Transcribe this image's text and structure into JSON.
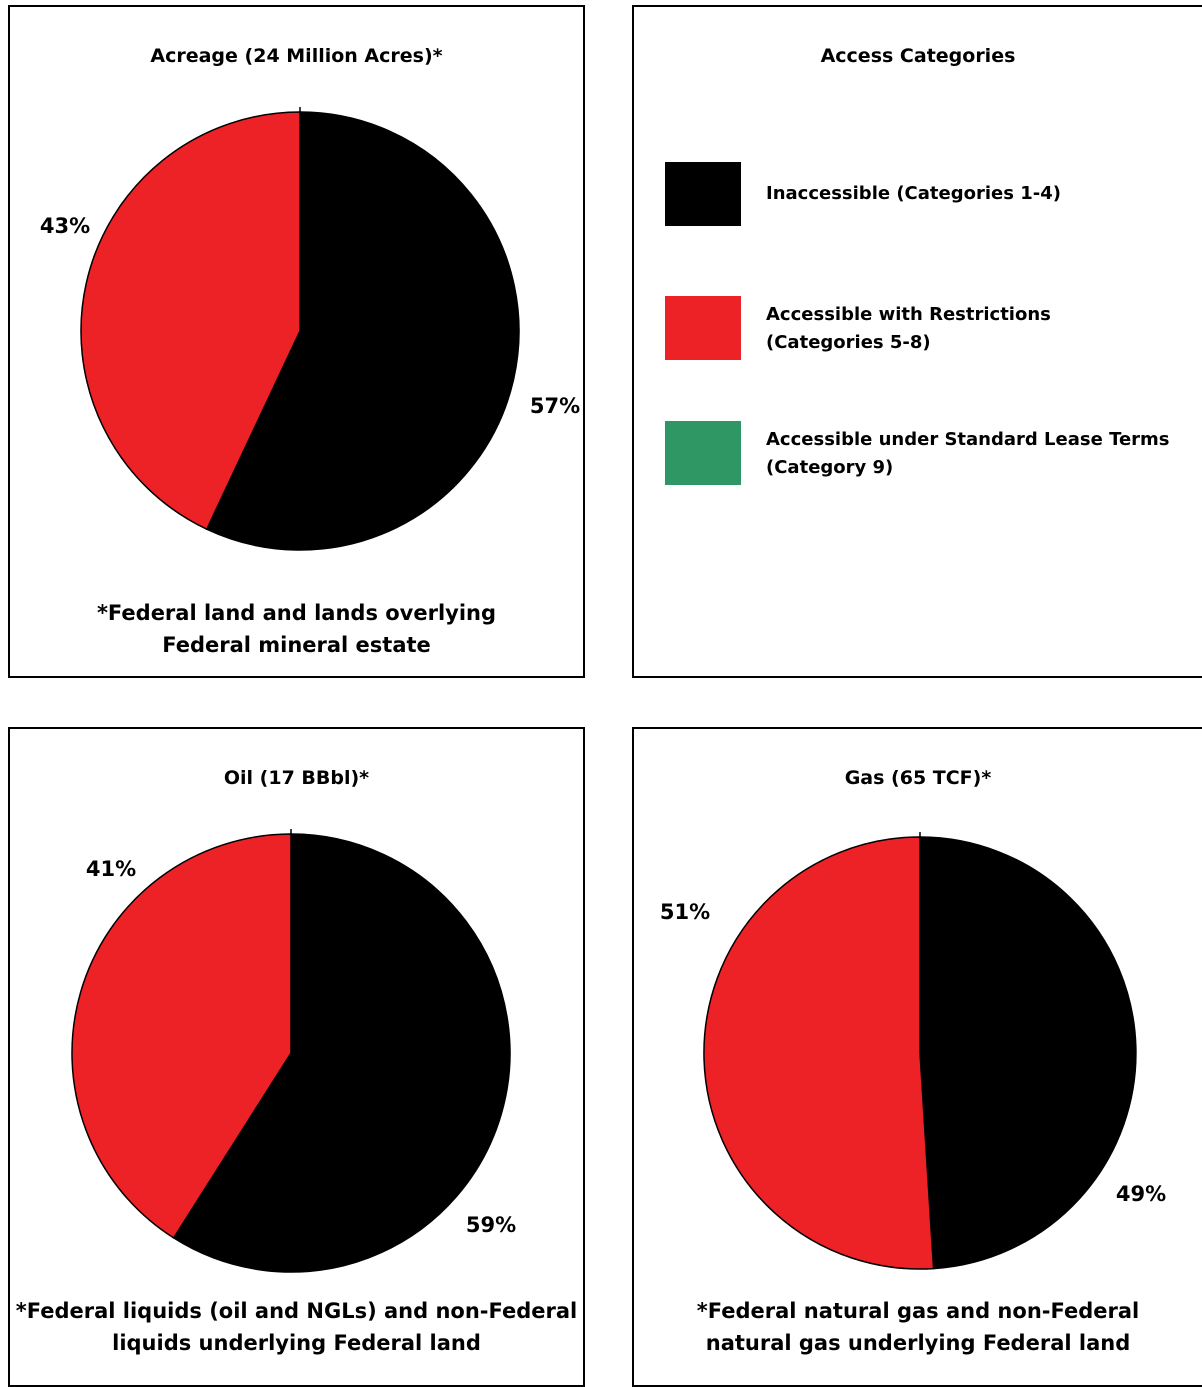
{
  "legend": {
    "title": "Access Categories",
    "items": [
      {
        "label": "Inaccessible (Categories 1-4)",
        "color": "#000000"
      },
      {
        "label": "Accessible with Restrictions\n(Categories 5-8)",
        "color": "#ec2227"
      },
      {
        "label": "Accessible under Standard Lease Terms\n(Category 9)",
        "color": "#2e9763"
      }
    ]
  },
  "chart_data": [
    {
      "type": "pie",
      "title": "Acreage (24 Million Acres)*",
      "note": "*Federal land and lands overlying\nFederal mineral estate",
      "categories": [
        "Inaccessible (Categories 1-4)",
        "Accessible with Restrictions (Categories 5-8)"
      ],
      "values": [
        57,
        43
      ],
      "labels": [
        "57%",
        "43%"
      ],
      "colors": [
        "#000000",
        "#ec2227"
      ]
    },
    {
      "type": "pie",
      "title": "Oil (17 BBbl)*",
      "note": "*Federal liquids (oil and NGLs) and non-Federal\nliquids underlying Federal land",
      "categories": [
        "Inaccessible (Categories 1-4)",
        "Accessible with Restrictions (Categories 5-8)"
      ],
      "values": [
        59,
        41
      ],
      "labels": [
        "59%",
        "41%"
      ],
      "colors": [
        "#000000",
        "#ec2227"
      ]
    },
    {
      "type": "pie",
      "title": "Gas (65 TCF)*",
      "note": "*Federal natural gas and non-Federal\nnatural gas underlying Federal land",
      "categories": [
        "Inaccessible (Categories 1-4)",
        "Accessible with Restrictions (Categories 5-8)"
      ],
      "values": [
        49,
        51
      ],
      "labels": [
        "49%",
        "51%"
      ],
      "colors": [
        "#000000",
        "#ec2227"
      ]
    }
  ]
}
